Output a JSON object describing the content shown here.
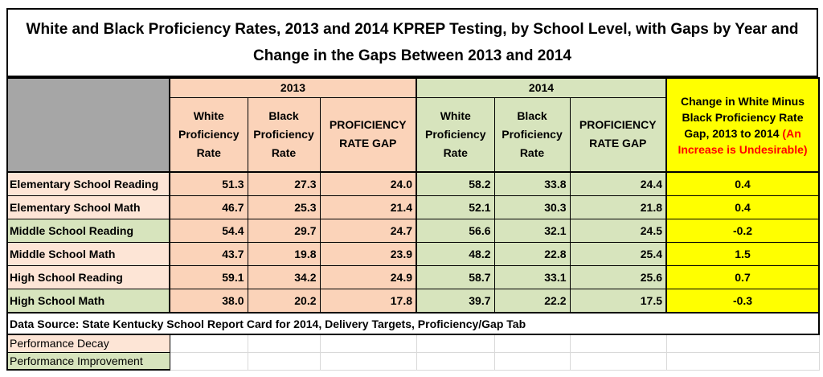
{
  "chart_data": {
    "type": "table",
    "title": "White and Black Proficiency Rates, 2013 and 2014 KPREP Testing, by School Level, with Gaps by Year and Change in the Gaps Between 2013 and 2014",
    "year_headers": [
      "2013",
      "2014"
    ],
    "column_headers": {
      "white_rate": "White Proficiency Rate",
      "black_rate": "Black Proficiency Rate",
      "gap": "PROFICIENCY RATE GAP",
      "change_main": "Change in White Minus Black Proficiency Rate Gap, 2013 to 2014",
      "change_note": "(An Increase is Undesirable)"
    },
    "rows": [
      {
        "label": "Elementary School Reading",
        "status": "decay",
        "w2013": "51.3",
        "b2013": "27.3",
        "g2013": "24.0",
        "w2014": "58.2",
        "b2014": "33.8",
        "g2014": "24.4",
        "change": "0.4"
      },
      {
        "label": "Elementary School Math",
        "status": "decay",
        "w2013": "46.7",
        "b2013": "25.3",
        "g2013": "21.4",
        "w2014": "52.1",
        "b2014": "30.3",
        "g2014": "21.8",
        "change": "0.4"
      },
      {
        "label": "Middle School Reading",
        "status": "improvement",
        "w2013": "54.4",
        "b2013": "29.7",
        "g2013": "24.7",
        "w2014": "56.6",
        "b2014": "32.1",
        "g2014": "24.5",
        "change": "-0.2"
      },
      {
        "label": "Middle School Math",
        "status": "decay",
        "w2013": "43.7",
        "b2013": "19.8",
        "g2013": "23.9",
        "w2014": "48.2",
        "b2014": "22.8",
        "g2014": "25.4",
        "change": "1.5"
      },
      {
        "label": "High School Reading",
        "status": "decay",
        "w2013": "59.1",
        "b2013": "34.2",
        "g2013": "24.9",
        "w2014": "58.7",
        "b2014": "33.1",
        "g2014": "25.6",
        "change": "0.7"
      },
      {
        "label": "High School Math",
        "status": "improvement",
        "w2013": "38.0",
        "b2013": "20.2",
        "g2013": "17.8",
        "w2014": "39.7",
        "b2014": "22.2",
        "g2014": "17.5",
        "change": "-0.3"
      }
    ],
    "source": "Data Source: State Kentucky School Report Card for 2014, Delivery Targets, Proficiency/Gap Tab",
    "legend": {
      "decay": "Performance Decay",
      "improvement": "Performance Improvement"
    },
    "colors": {
      "decay_color": "#ff0000",
      "improvement_color": "#000000",
      "col2013_bg": "#fbd3b9",
      "col2014_bg": "#d7e4bd",
      "change_bg": "#ffff00"
    }
  }
}
